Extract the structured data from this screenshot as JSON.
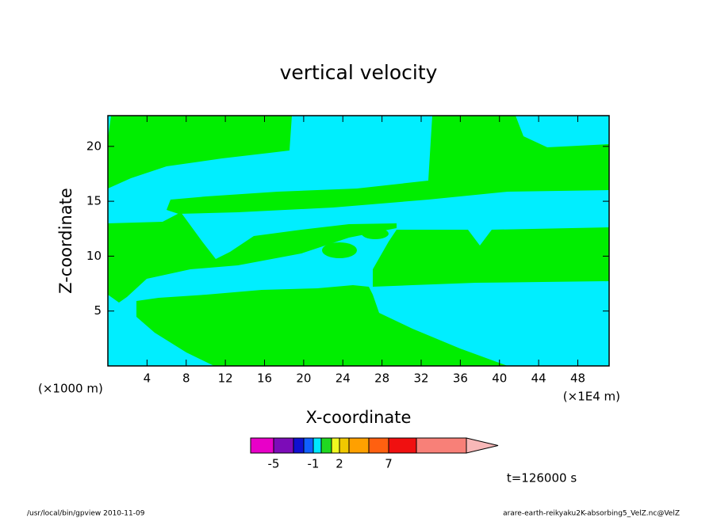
{
  "chart_data": {
    "type": "contour",
    "title": "vertical velocity",
    "xlabel": "X-coordinate",
    "ylabel": "Z-coordinate",
    "x_unit_left": "(×1000 m)",
    "x_unit_right": "(×1E4 m)",
    "xlim": [
      0,
      51.2
    ],
    "ylim": [
      0,
      22.8
    ],
    "xticks": [
      4,
      8,
      12,
      16,
      20,
      24,
      28,
      32,
      36,
      40,
      44,
      48
    ],
    "yticks": [
      5,
      10,
      15,
      20
    ],
    "region_colors": [
      "#00eeff",
      "#00ee00"
    ],
    "colorbar": {
      "colors": [
        "#e800c8",
        "#7c0cb8",
        "#1010d0",
        "#1060ff",
        "#00e8ff",
        "#20d820",
        "#f0f820",
        "#f0c800",
        "#ffa000",
        "#ff6010",
        "#f01010",
        "#f88078",
        "#f8b8b8"
      ],
      "ticks": [
        -5,
        -1,
        2,
        7
      ]
    },
    "time_label": "t=126000 s",
    "footer_left": "/usr/local/bin/gpview   2010-11-09",
    "footer_right": "arare-earth-reikyaku2K-absorbing5_VelZ.nc@VelZ"
  }
}
